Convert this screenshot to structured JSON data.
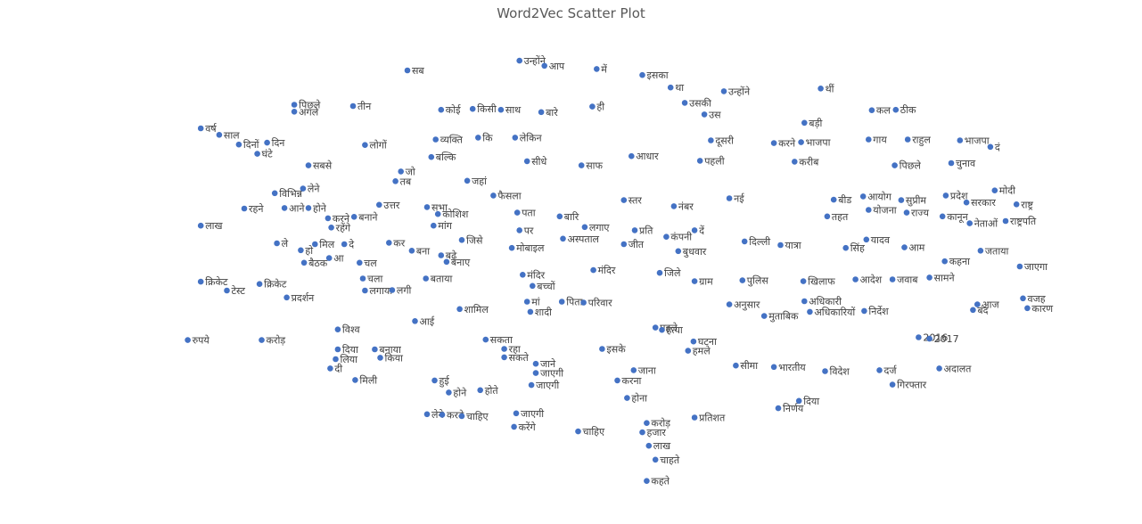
{
  "chart_data": {
    "type": "scatter",
    "title": "Word2Vec Scatter Plot",
    "xlabel": "",
    "ylabel": "",
    "xlim": [
      0,
      100
    ],
    "ylim": [
      0,
      100
    ],
    "grid": false,
    "legend": "none",
    "marker_color": "#4472c4",
    "points": [
      {
        "x": 35.0,
        "y": 92.5,
        "label": "सब"
      },
      {
        "x": 45.3,
        "y": 94.6,
        "label": "उन्होंने"
      },
      {
        "x": 47.6,
        "y": 93.5,
        "label": "आप"
      },
      {
        "x": 52.4,
        "y": 92.8,
        "label": "में"
      },
      {
        "x": 56.6,
        "y": 91.5,
        "label": "इसका"
      },
      {
        "x": 59.2,
        "y": 88.8,
        "label": "था"
      },
      {
        "x": 64.1,
        "y": 88.0,
        "label": "उन्होंने"
      },
      {
        "x": 73.0,
        "y": 88.6,
        "label": "थीं"
      },
      {
        "x": 24.6,
        "y": 85.1,
        "label": "पिछले"
      },
      {
        "x": 24.6,
        "y": 83.6,
        "label": "अगले"
      },
      {
        "x": 30.0,
        "y": 84.8,
        "label": "तीन"
      },
      {
        "x": 38.1,
        "y": 84.0,
        "label": "कोई"
      },
      {
        "x": 41.0,
        "y": 84.2,
        "label": "किसी"
      },
      {
        "x": 43.6,
        "y": 84.0,
        "label": "साथ"
      },
      {
        "x": 47.3,
        "y": 83.5,
        "label": "बारे"
      },
      {
        "x": 52.0,
        "y": 84.7,
        "label": "ही"
      },
      {
        "x": 60.5,
        "y": 85.5,
        "label": "उसकी"
      },
      {
        "x": 62.3,
        "y": 83.0,
        "label": "उस"
      },
      {
        "x": 71.5,
        "y": 81.2,
        "label": "बड़ी"
      },
      {
        "x": 77.7,
        "y": 83.9,
        "label": "कल"
      },
      {
        "x": 79.9,
        "y": 84.0,
        "label": "ठीक"
      },
      {
        "x": 16.0,
        "y": 80.0,
        "label": "वर्ष"
      },
      {
        "x": 17.7,
        "y": 78.6,
        "label": "साल"
      },
      {
        "x": 19.5,
        "y": 76.5,
        "label": "दिनों"
      },
      {
        "x": 22.1,
        "y": 76.9,
        "label": "दिन"
      },
      {
        "x": 21.2,
        "y": 74.5,
        "label": "घंटे"
      },
      {
        "x": 31.1,
        "y": 76.4,
        "label": "लोगों"
      },
      {
        "x": 37.6,
        "y": 77.6,
        "label": "व्यक्ति"
      },
      {
        "x": 41.5,
        "y": 78.0,
        "label": "कि"
      },
      {
        "x": 44.9,
        "y": 78.0,
        "label": "लेकिन"
      },
      {
        "x": 62.9,
        "y": 77.4,
        "label": "दूसरी"
      },
      {
        "x": 68.7,
        "y": 76.8,
        "label": "करने"
      },
      {
        "x": 71.2,
        "y": 77.0,
        "label": "भाजपा"
      },
      {
        "x": 77.4,
        "y": 77.6,
        "label": "गाय"
      },
      {
        "x": 81.0,
        "y": 77.6,
        "label": "राहुल"
      },
      {
        "x": 85.8,
        "y": 77.4,
        "label": "भाजपा"
      },
      {
        "x": 88.6,
        "y": 76.0,
        "label": "दं"
      },
      {
        "x": 25.9,
        "y": 72.0,
        "label": "सबसे"
      },
      {
        "x": 34.4,
        "y": 70.7,
        "label": "जो"
      },
      {
        "x": 33.9,
        "y": 68.6,
        "label": "तब"
      },
      {
        "x": 37.2,
        "y": 73.8,
        "label": "बल्कि"
      },
      {
        "x": 40.5,
        "y": 68.7,
        "label": "जहां"
      },
      {
        "x": 46.0,
        "y": 72.9,
        "label": "सीधे"
      },
      {
        "x": 51.0,
        "y": 72.0,
        "label": "साफ"
      },
      {
        "x": 55.6,
        "y": 74.0,
        "label": "आधार"
      },
      {
        "x": 61.9,
        "y": 73.0,
        "label": "पहली"
      },
      {
        "x": 70.6,
        "y": 72.8,
        "label": "करीब"
      },
      {
        "x": 79.8,
        "y": 72.0,
        "label": "पिछले"
      },
      {
        "x": 85.0,
        "y": 72.5,
        "label": "चुनाव"
      },
      {
        "x": 22.8,
        "y": 66.0,
        "label": "विभिन्न"
      },
      {
        "x": 25.4,
        "y": 67.0,
        "label": "लेने"
      },
      {
        "x": 20.0,
        "y": 62.7,
        "label": "रहने"
      },
      {
        "x": 23.7,
        "y": 62.8,
        "label": "आने"
      },
      {
        "x": 25.9,
        "y": 62.8,
        "label": "होने"
      },
      {
        "x": 27.7,
        "y": 60.6,
        "label": "करने"
      },
      {
        "x": 30.1,
        "y": 60.9,
        "label": "बनाने"
      },
      {
        "x": 32.4,
        "y": 63.5,
        "label": "उत्तर"
      },
      {
        "x": 36.8,
        "y": 63.0,
        "label": "सभा"
      },
      {
        "x": 37.8,
        "y": 61.5,
        "label": "कोशिश"
      },
      {
        "x": 42.9,
        "y": 65.5,
        "label": "फैसला"
      },
      {
        "x": 45.1,
        "y": 61.8,
        "label": "पता"
      },
      {
        "x": 49.0,
        "y": 61.0,
        "label": "बारि"
      },
      {
        "x": 54.9,
        "y": 64.5,
        "label": "स्तर"
      },
      {
        "x": 59.5,
        "y": 63.2,
        "label": "नंबर"
      },
      {
        "x": 64.6,
        "y": 64.9,
        "label": "नई"
      },
      {
        "x": 74.2,
        "y": 64.6,
        "label": "बीड"
      },
      {
        "x": 76.9,
        "y": 65.3,
        "label": "आयोग"
      },
      {
        "x": 80.4,
        "y": 64.5,
        "label": "सुप्रीम"
      },
      {
        "x": 84.5,
        "y": 65.5,
        "label": "प्रदेश"
      },
      {
        "x": 86.4,
        "y": 64.0,
        "label": "सरकार"
      },
      {
        "x": 89.0,
        "y": 66.6,
        "label": "मोदी"
      },
      {
        "x": 91.0,
        "y": 63.6,
        "label": "राष्ट्र"
      },
      {
        "x": 16.0,
        "y": 59.0,
        "label": "लाख"
      },
      {
        "x": 28.0,
        "y": 58.6,
        "label": "रहेंगे"
      },
      {
        "x": 37.4,
        "y": 59.0,
        "label": "मांग"
      },
      {
        "x": 45.3,
        "y": 58.0,
        "label": "पर"
      },
      {
        "x": 51.3,
        "y": 58.7,
        "label": "लगाए"
      },
      {
        "x": 55.9,
        "y": 58.0,
        "label": "प्रति"
      },
      {
        "x": 61.4,
        "y": 58.0,
        "label": "दें"
      },
      {
        "x": 73.6,
        "y": 61.0,
        "label": "तहत"
      },
      {
        "x": 77.4,
        "y": 62.4,
        "label": "योजना"
      },
      {
        "x": 80.9,
        "y": 61.8,
        "label": "राज्य"
      },
      {
        "x": 84.2,
        "y": 61.0,
        "label": "कानून"
      },
      {
        "x": 86.7,
        "y": 59.5,
        "label": "नेताओं"
      },
      {
        "x": 90.0,
        "y": 60.0,
        "label": "राष्ट्रपति"
      },
      {
        "x": 23.0,
        "y": 55.2,
        "label": "ले"
      },
      {
        "x": 25.2,
        "y": 53.7,
        "label": "हो"
      },
      {
        "x": 26.5,
        "y": 55.0,
        "label": "मिल"
      },
      {
        "x": 29.2,
        "y": 55.0,
        "label": "दे"
      },
      {
        "x": 33.3,
        "y": 55.3,
        "label": "कर"
      },
      {
        "x": 35.4,
        "y": 53.6,
        "label": "बना"
      },
      {
        "x": 38.1,
        "y": 52.6,
        "label": "बढ़े"
      },
      {
        "x": 38.6,
        "y": 51.2,
        "label": "बनाए"
      },
      {
        "x": 40.0,
        "y": 55.9,
        "label": "जिसे"
      },
      {
        "x": 44.6,
        "y": 54.2,
        "label": "मोबाइल"
      },
      {
        "x": 49.3,
        "y": 56.2,
        "label": "अस्पताल"
      },
      {
        "x": 54.9,
        "y": 55.0,
        "label": "जीत"
      },
      {
        "x": 58.8,
        "y": 56.6,
        "label": "कंपनी"
      },
      {
        "x": 59.9,
        "y": 53.5,
        "label": "बुधवार"
      },
      {
        "x": 66.0,
        "y": 55.6,
        "label": "दिल्ली"
      },
      {
        "x": 69.3,
        "y": 54.8,
        "label": "यात्रा"
      },
      {
        "x": 75.3,
        "y": 54.2,
        "label": "सिंह"
      },
      {
        "x": 77.2,
        "y": 56.0,
        "label": "यादव"
      },
      {
        "x": 80.7,
        "y": 54.3,
        "label": "आम"
      },
      {
        "x": 84.4,
        "y": 51.3,
        "label": "कहना"
      },
      {
        "x": 87.7,
        "y": 53.6,
        "label": "जताया"
      },
      {
        "x": 25.5,
        "y": 51.0,
        "label": "बैठक"
      },
      {
        "x": 27.8,
        "y": 52.0,
        "label": "आ"
      },
      {
        "x": 30.6,
        "y": 51.0,
        "label": "चल"
      },
      {
        "x": 16.0,
        "y": 46.9,
        "label": "क्रिकेट"
      },
      {
        "x": 18.4,
        "y": 45.0,
        "label": "टेस्ट"
      },
      {
        "x": 21.4,
        "y": 46.4,
        "label": "क्रिकेट"
      },
      {
        "x": 23.9,
        "y": 43.5,
        "label": "प्रदर्शन"
      },
      {
        "x": 30.9,
        "y": 47.6,
        "label": "चला"
      },
      {
        "x": 31.1,
        "y": 45.0,
        "label": "लगाया"
      },
      {
        "x": 33.6,
        "y": 45.1,
        "label": "लगी"
      },
      {
        "x": 36.7,
        "y": 47.6,
        "label": "बताया"
      },
      {
        "x": 45.6,
        "y": 48.4,
        "label": "मंदिर"
      },
      {
        "x": 46.5,
        "y": 46.0,
        "label": "बच्चों"
      },
      {
        "x": 52.1,
        "y": 49.4,
        "label": "मंदिर"
      },
      {
        "x": 58.2,
        "y": 48.8,
        "label": "जिले"
      },
      {
        "x": 61.4,
        "y": 47.0,
        "label": "ग्राम"
      },
      {
        "x": 65.8,
        "y": 47.2,
        "label": "पुलिस"
      },
      {
        "x": 71.4,
        "y": 47.0,
        "label": "खिलाफ"
      },
      {
        "x": 76.2,
        "y": 47.4,
        "label": "आदेश"
      },
      {
        "x": 79.6,
        "y": 47.4,
        "label": "जवाब"
      },
      {
        "x": 83.0,
        "y": 47.8,
        "label": "सामने"
      },
      {
        "x": 91.3,
        "y": 50.2,
        "label": "जाएगा"
      },
      {
        "x": 46.0,
        "y": 42.6,
        "label": "मां"
      },
      {
        "x": 46.3,
        "y": 40.4,
        "label": "शादी"
      },
      {
        "x": 49.2,
        "y": 42.6,
        "label": "पिता"
      },
      {
        "x": 51.2,
        "y": 42.4,
        "label": "परिवार"
      },
      {
        "x": 64.6,
        "y": 42.0,
        "label": "अनुसार"
      },
      {
        "x": 67.8,
        "y": 39.5,
        "label": "मुताबिक"
      },
      {
        "x": 71.5,
        "y": 42.7,
        "label": "अधिकारी"
      },
      {
        "x": 72.0,
        "y": 40.4,
        "label": "अधिकारियों"
      },
      {
        "x": 77.0,
        "y": 40.6,
        "label": "निर्देश"
      },
      {
        "x": 87.0,
        "y": 40.8,
        "label": "बंद"
      },
      {
        "x": 87.4,
        "y": 42.0,
        "label": "आज"
      },
      {
        "x": 91.6,
        "y": 43.3,
        "label": "वजह"
      },
      {
        "x": 92.0,
        "y": 41.2,
        "label": "कारण"
      },
      {
        "x": 39.8,
        "y": 41.0,
        "label": "शामिल"
      },
      {
        "x": 35.7,
        "y": 38.4,
        "label": "आई"
      },
      {
        "x": 14.8,
        "y": 34.3,
        "label": "रुपये"
      },
      {
        "x": 21.6,
        "y": 34.3,
        "label": "करोड़"
      },
      {
        "x": 28.6,
        "y": 36.6,
        "label": "विश्व"
      },
      {
        "x": 28.6,
        "y": 32.3,
        "label": "दिया"
      },
      {
        "x": 28.4,
        "y": 30.2,
        "label": "लिया"
      },
      {
        "x": 27.9,
        "y": 28.2,
        "label": "दी"
      },
      {
        "x": 32.0,
        "y": 32.3,
        "label": "बनाया"
      },
      {
        "x": 32.5,
        "y": 30.5,
        "label": "किया"
      },
      {
        "x": 30.2,
        "y": 25.7,
        "label": "मिली"
      },
      {
        "x": 42.2,
        "y": 34.4,
        "label": "सकता"
      },
      {
        "x": 43.9,
        "y": 32.4,
        "label": "रहा"
      },
      {
        "x": 43.9,
        "y": 30.6,
        "label": "सकते"
      },
      {
        "x": 46.8,
        "y": 29.2,
        "label": "जाने"
      },
      {
        "x": 46.8,
        "y": 27.2,
        "label": "जाएगी"
      },
      {
        "x": 52.9,
        "y": 32.4,
        "label": "इसके"
      },
      {
        "x": 57.8,
        "y": 37.0,
        "label": "पहले"
      },
      {
        "x": 58.4,
        "y": 36.5,
        "label": "हत्या"
      },
      {
        "x": 61.3,
        "y": 34.0,
        "label": "घटना"
      },
      {
        "x": 60.8,
        "y": 32.0,
        "label": "हमले"
      },
      {
        "x": 65.2,
        "y": 28.8,
        "label": "सीमा"
      },
      {
        "x": 68.7,
        "y": 28.5,
        "label": "भारतीय"
      },
      {
        "x": 73.4,
        "y": 27.6,
        "label": "विदेश"
      },
      {
        "x": 78.4,
        "y": 27.8,
        "label": "दर्ज"
      },
      {
        "x": 79.6,
        "y": 24.7,
        "label": "गिरफ्तार"
      },
      {
        "x": 83.9,
        "y": 28.2,
        "label": "अदालत"
      },
      {
        "x": 82.0,
        "y": 34.9,
        "label": "2016"
      },
      {
        "x": 83.0,
        "y": 34.6,
        "label": "2017"
      },
      {
        "x": 37.5,
        "y": 25.6,
        "label": "हुई"
      },
      {
        "x": 38.8,
        "y": 23.0,
        "label": "होने"
      },
      {
        "x": 41.7,
        "y": 23.5,
        "label": "होते"
      },
      {
        "x": 46.4,
        "y": 24.6,
        "label": "जाएगी"
      },
      {
        "x": 55.8,
        "y": 27.8,
        "label": "जाना"
      },
      {
        "x": 54.3,
        "y": 25.6,
        "label": "करना"
      },
      {
        "x": 55.2,
        "y": 21.8,
        "label": "होना"
      },
      {
        "x": 36.8,
        "y": 18.3,
        "label": "लेने"
      },
      {
        "x": 38.2,
        "y": 18.2,
        "label": "करते"
      },
      {
        "x": 40.0,
        "y": 17.9,
        "label": "चाहिए"
      },
      {
        "x": 45.0,
        "y": 18.5,
        "label": "जाएगी"
      },
      {
        "x": 44.8,
        "y": 15.6,
        "label": "करेंगे"
      },
      {
        "x": 50.7,
        "y": 14.6,
        "label": "चाहिए"
      },
      {
        "x": 57.0,
        "y": 16.4,
        "label": "करोड़"
      },
      {
        "x": 56.6,
        "y": 14.4,
        "label": "हजार"
      },
      {
        "x": 57.2,
        "y": 11.5,
        "label": "लाख"
      },
      {
        "x": 57.8,
        "y": 8.5,
        "label": "चाहते"
      },
      {
        "x": 57.0,
        "y": 3.9,
        "label": "कहते"
      },
      {
        "x": 61.4,
        "y": 17.6,
        "label": "प्रतिशत"
      },
      {
        "x": 69.1,
        "y": 19.6,
        "label": "निर्णय"
      },
      {
        "x": 71.0,
        "y": 21.2,
        "label": "दिया"
      }
    ]
  }
}
